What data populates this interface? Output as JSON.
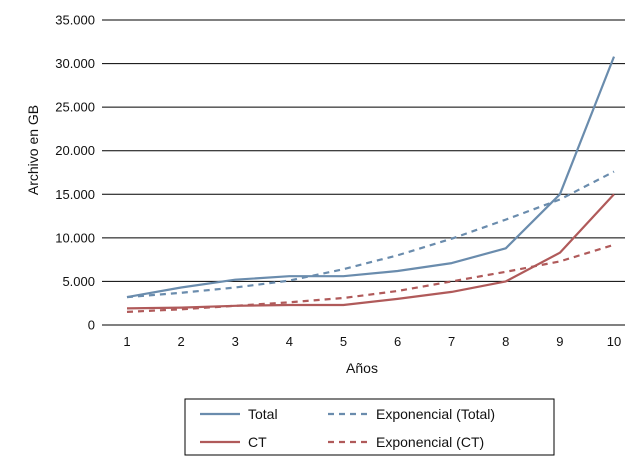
{
  "chart_data": {
    "type": "line",
    "title": "",
    "xlabel": "Años",
    "ylabel": "Archivo en GB",
    "x": [
      1,
      2,
      3,
      4,
      5,
      6,
      7,
      8,
      9,
      10
    ],
    "x_tick_labels": [
      "1",
      "2",
      "3",
      "4",
      "5",
      "6",
      "7",
      "8",
      "9",
      "10"
    ],
    "ylim": [
      0,
      35000
    ],
    "y_ticks": [
      0,
      5000,
      10000,
      15000,
      20000,
      25000,
      30000,
      35000
    ],
    "y_tick_labels": [
      "0",
      "5.000",
      "10.000",
      "15.000",
      "20.000",
      "25.000",
      "30.000",
      "35.000"
    ],
    "grid": "horizontal",
    "legend_position": "bottom",
    "series": [
      {
        "name": "Total",
        "style": "solid",
        "color": "#6a8cad",
        "values": [
          3200,
          4300,
          5200,
          5600,
          5600,
          6200,
          7100,
          8800,
          15000,
          30800
        ]
      },
      {
        "name": "Exponencial (Total)",
        "style": "dashed",
        "color": "#6a8cad",
        "values": [
          3200,
          3700,
          4300,
          5100,
          6400,
          8000,
          9900,
          12100,
          14400,
          17600
        ]
      },
      {
        "name": "CT",
        "style": "solid",
        "color": "#b05a5a",
        "values": [
          1900,
          2000,
          2200,
          2300,
          2300,
          3000,
          3800,
          5000,
          8300,
          15000
        ]
      },
      {
        "name": "Exponencial (CT)",
        "style": "dashed",
        "color": "#b05a5a",
        "values": [
          1500,
          1800,
          2200,
          2600,
          3100,
          3900,
          5000,
          6100,
          7300,
          9200
        ]
      }
    ],
    "legend": [
      {
        "label": "Total",
        "series": 0
      },
      {
        "label": "Exponencial (Total)",
        "series": 1
      },
      {
        "label": "CT",
        "series": 2
      },
      {
        "label": "Exponencial (CT)",
        "series": 3
      }
    ]
  }
}
